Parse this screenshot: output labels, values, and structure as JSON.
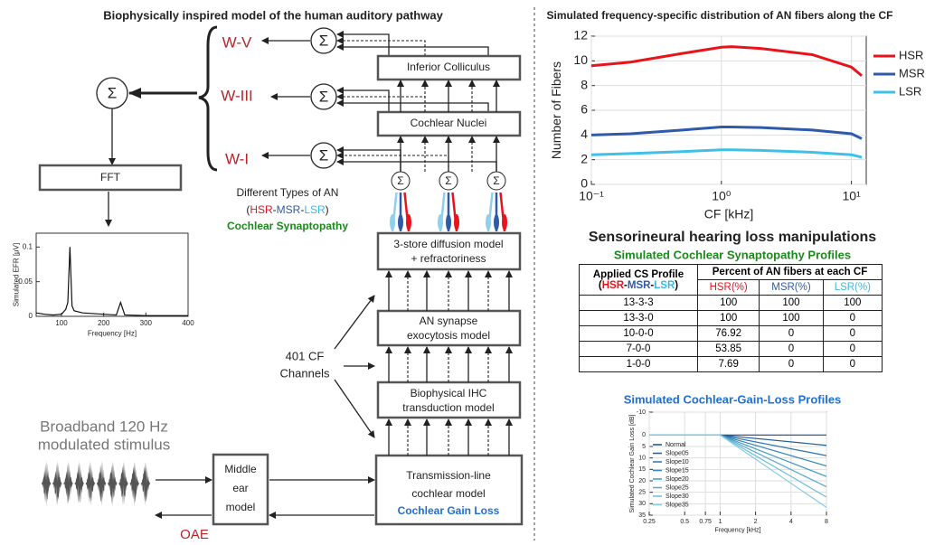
{
  "diagram": {
    "title": "Biophysically inspired model of the human auditory pathway",
    "sum": "Σ",
    "waves": [
      "W-V",
      "W-III",
      "W-I"
    ],
    "blocks": {
      "ic": "Inferior Colliculus",
      "cn": "Cochlear Nuclei",
      "fft": "FFT",
      "diffusion": [
        "3-store diffusion model",
        "+ refractoriness"
      ],
      "synapse": [
        "AN synapse",
        "exocytosis model"
      ],
      "ihc": [
        "Biophysical IHC",
        "transduction model"
      ],
      "middle_ear": [
        "Middle",
        "ear",
        "model"
      ],
      "tl": [
        "Transmission-line",
        "cochlear model"
      ]
    },
    "an_types": "Different Types of AN",
    "an_parts": [
      "(",
      "HSR",
      "-",
      "MSR",
      "-",
      "LSR",
      ")"
    ],
    "synaptopathy": "Cochlear Synaptopathy",
    "channels": [
      "401 CF",
      "Channels"
    ],
    "stimulus": [
      "Broadband 120 Hz",
      "modulated stimulus"
    ],
    "gain_loss": "Cochlear Gain Loss",
    "oae": "OAE"
  },
  "manipulations": {
    "title": "Sensorineural hearing loss manipulations",
    "cs_title": "Simulated Cochlear Synaptopathy Profiles",
    "cgl_title": "Simulated Cochlear-Gain-Loss Profiles"
  },
  "table": {
    "profile": "Applied CS Profile",
    "percent": "Percent of AN fibers at each CF",
    "columns": [
      "HSR(%)",
      "MSR(%)",
      "LSR(%)"
    ],
    "rows": [
      [
        "13-3-3",
        100,
        100,
        100
      ],
      [
        "13-3-0",
        100,
        100,
        0
      ],
      [
        "10-0-0",
        76.92,
        0,
        0
      ],
      [
        "7-0-0",
        53.85,
        0,
        0
      ],
      [
        "1-0-0",
        7.69,
        0,
        0
      ]
    ]
  },
  "chart_data": [
    {
      "type": "line",
      "xlabel": "Frequency [Hz]",
      "ylabel": "Simulated EFR [μV]",
      "color": "#111",
      "x": [
        40,
        60,
        80,
        100,
        110,
        115,
        120,
        125,
        130,
        150,
        200,
        230,
        240,
        250,
        300,
        400
      ],
      "values": [
        0.005,
        0.003,
        0.002,
        0.003,
        0.01,
        0.02,
        0.1,
        0.015,
        0.008,
        0.005,
        0.003,
        0.002,
        0.02,
        0.002,
        0.001,
        0.001
      ],
      "xlim": [
        40,
        400
      ],
      "ylim": [
        0,
        0.12
      ],
      "xticks": [
        100,
        200,
        300,
        400
      ],
      "yticks": [
        0,
        0.05,
        0.1
      ],
      "grid": false
    },
    {
      "type": "line",
      "title": "Simulated frequency-specific distribution of AN fibers along the CF",
      "xlabel": "CF [kHz]",
      "ylabel": "Number of Fibers",
      "xscale": "log",
      "x": [
        0.1,
        0.2,
        0.5,
        1,
        1.2,
        2,
        5,
        10,
        12
      ],
      "series": [
        {
          "name": "HSR",
          "color": "#e8141c",
          "values": [
            9.6,
            9.9,
            10.6,
            11.1,
            11.15,
            11.0,
            10.5,
            9.5,
            8.8
          ]
        },
        {
          "name": "MSR",
          "color": "#2f5aa8",
          "values": [
            4.0,
            4.1,
            4.4,
            4.65,
            4.65,
            4.6,
            4.4,
            4.1,
            3.7
          ]
        },
        {
          "name": "LSR",
          "color": "#3fc0e8",
          "values": [
            2.4,
            2.5,
            2.65,
            2.8,
            2.8,
            2.75,
            2.6,
            2.4,
            2.2
          ]
        }
      ],
      "xlim": [
        0.1,
        13
      ],
      "ylim": [
        0,
        12
      ],
      "xticks": [
        {
          "value": 0.1,
          "label": "10⁻¹"
        },
        {
          "value": 1,
          "label": "10⁰"
        },
        {
          "value": 10,
          "label": "10¹"
        }
      ],
      "yticks": [
        0,
        2,
        4,
        6,
        8,
        10,
        12
      ],
      "grid": true,
      "legend": "right"
    },
    {
      "type": "line",
      "xlabel": "Frequency [kHz]",
      "ylabel": "Simulated Cochlear Gain Loss [dB]",
      "xscale": "log",
      "y_inverted": true,
      "x": [
        0.25,
        1,
        8
      ],
      "series": [
        {
          "name": "Normal",
          "color": "#1f4e8c",
          "values": [
            0,
            0,
            0
          ]
        },
        {
          "name": "Slope05",
          "color": "#1f5f99",
          "values": [
            0,
            0,
            4.5
          ]
        },
        {
          "name": "Slope10",
          "color": "#2a72a8",
          "values": [
            0,
            0,
            9.0
          ]
        },
        {
          "name": "Slope15",
          "color": "#3585b5",
          "values": [
            0,
            0,
            13.5
          ]
        },
        {
          "name": "Slope20",
          "color": "#4598c2",
          "values": [
            0,
            0,
            18.1
          ]
        },
        {
          "name": "Slope25",
          "color": "#56aacd",
          "values": [
            0,
            0,
            22.6
          ]
        },
        {
          "name": "Slope30",
          "color": "#6bbdd8",
          "values": [
            0,
            0,
            27.1
          ]
        },
        {
          "name": "Slope35",
          "color": "#84cde3",
          "values": [
            0,
            0,
            31.6
          ]
        }
      ],
      "xlim": [
        0.25,
        8
      ],
      "ylim": [
        -10,
        35
      ],
      "xticks": [
        0.25,
        0.5,
        0.75,
        1,
        2,
        4,
        8
      ],
      "yticks": [
        -10,
        0,
        5,
        10,
        15,
        20,
        25,
        30,
        35
      ],
      "grid": true,
      "legend": "upper left"
    }
  ]
}
